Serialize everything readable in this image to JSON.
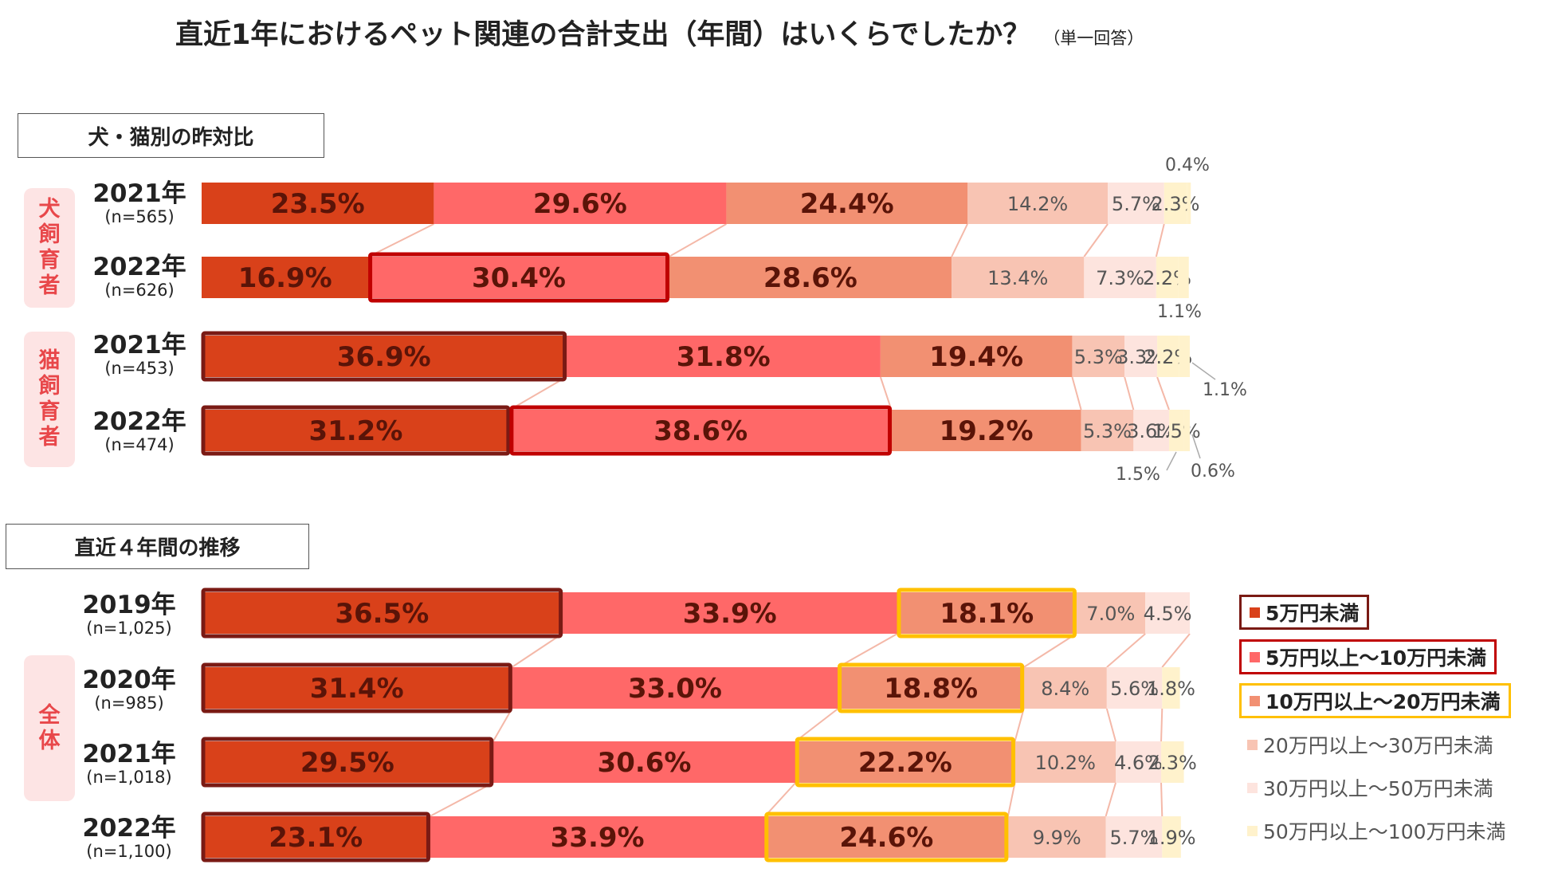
{
  "title": {
    "main": "直近1年におけるペット関連の合計支出（年間）はいくらでしたか？",
    "sub": "（単一回答）"
  },
  "section_labels": {
    "yoy": "犬・猫別の昨対比",
    "trend": "直近４年間の推移"
  },
  "groups": {
    "dog": "犬飼育者",
    "cat": "猫飼育者",
    "all": "全体"
  },
  "rows": [
    {
      "year": "2021年",
      "n": "(n=565)"
    },
    {
      "year": "2022年",
      "n": "(n=626)"
    },
    {
      "year": "2021年",
      "n": "(n=453)"
    },
    {
      "year": "2022年",
      "n": "(n=474)"
    },
    {
      "year": "2019年",
      "n": "(n=1,025)"
    },
    {
      "year": "2020年",
      "n": "(n=985)"
    },
    {
      "year": "2021年",
      "n": "(n=1,018)"
    },
    {
      "year": "2022年",
      "n": "(n=1,100)"
    }
  ],
  "legend": [
    {
      "label": "5万円未満",
      "color": "#d9411a",
      "bold": true,
      "border": "#7a1a14"
    },
    {
      "label": "5万円以上～10万円未満",
      "color": "#ff6868",
      "bold": true,
      "border": "#c00000"
    },
    {
      "label": "10万円以上～20万円未満",
      "color": "#f29072",
      "bold": true,
      "border": "#ffc000"
    },
    {
      "label": "20万円以上～30万円未満",
      "color": "#f8c4b3",
      "bold": false,
      "border": ""
    },
    {
      "label": "30万円以上～50万円未満",
      "color": "#fde4de",
      "bold": false,
      "border": ""
    },
    {
      "label": "50万円以上～100万円未満",
      "color": "#fff2cc",
      "bold": false,
      "border": ""
    }
  ],
  "chart_data": {
    "type": "bar",
    "orientation": "horizontal",
    "stacked": true,
    "xlim": [
      0,
      100
    ],
    "unit": "%",
    "series_names": [
      "5万円未満",
      "5万円以上～10万円未満",
      "10万円以上～20万円未満",
      "20万円以上～30万円未満",
      "30万円以上～50万円未満",
      "50万円以上～100万円未満"
    ],
    "colors": [
      "#d9411a",
      "#ff6868",
      "#f29072",
      "#f8c4b3",
      "#fde4de",
      "#fff2cc"
    ],
    "bars": [
      {
        "group": "犬飼育者",
        "category": "2021年",
        "values": [
          23.5,
          29.6,
          24.4,
          14.2,
          5.7,
          2.3
        ],
        "extra": [
          0.4
        ],
        "highlight": []
      },
      {
        "group": "犬飼育者",
        "category": "2022年",
        "values": [
          16.9,
          30.4,
          28.6,
          13.4,
          7.3,
          2.2
        ],
        "extra": [
          1.1
        ],
        "highlight": [
          1
        ]
      },
      {
        "group": "猫飼育者",
        "category": "2021年",
        "values": [
          36.9,
          31.8,
          19.4,
          5.3,
          3.3,
          2.2
        ],
        "extra": [
          1.1
        ],
        "highlight": [
          0
        ]
      },
      {
        "group": "猫飼育者",
        "category": "2022年",
        "values": [
          31.2,
          38.6,
          19.2,
          5.3,
          3.6,
          1.5
        ],
        "extra": [
          0.6
        ],
        "highlight": [
          0,
          1
        ]
      },
      {
        "group": "全体",
        "category": "2019年",
        "values": [
          36.5,
          33.9,
          18.1,
          7.0,
          4.5,
          0
        ],
        "extra": [],
        "highlight": [
          0,
          2
        ]
      },
      {
        "group": "全体",
        "category": "2020年",
        "values": [
          31.4,
          33.0,
          18.8,
          8.4,
          5.6,
          1.8
        ],
        "extra": [],
        "highlight": [
          0,
          2
        ]
      },
      {
        "group": "全体",
        "category": "2021年",
        "values": [
          29.5,
          30.6,
          22.2,
          10.2,
          4.6,
          2.3
        ],
        "extra": [],
        "highlight": [
          0,
          2
        ]
      },
      {
        "group": "全体",
        "category": "2022年",
        "values": [
          23.1,
          33.9,
          24.6,
          9.9,
          5.7,
          1.9
        ],
        "extra": [],
        "highlight": [
          0,
          2
        ]
      }
    ],
    "highlight_colors": [
      "#7a1a14",
      "#c00000",
      "#ffc000"
    ]
  }
}
